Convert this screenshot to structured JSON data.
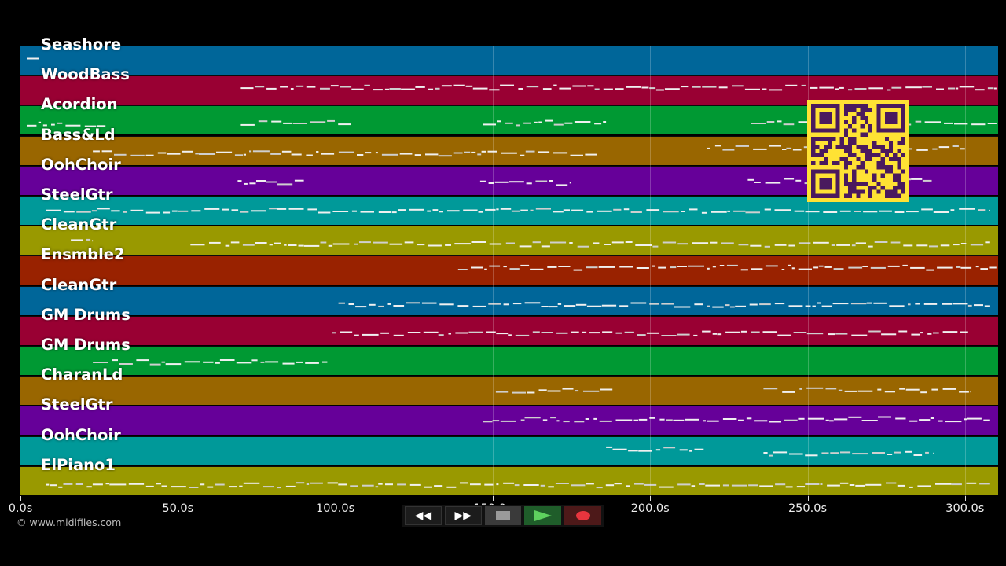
{
  "tracks": [
    {
      "name": "Seashore",
      "color": "#006699"
    },
    {
      "name": "WoodBass",
      "color": "#990033"
    },
    {
      "name": "Acordion",
      "color": "#009933"
    },
    {
      "name": "Bass&Ld",
      "color": "#996600"
    },
    {
      "name": "OohChoir",
      "color": "#660099"
    },
    {
      "name": "SteelGtr",
      "color": "#009999"
    },
    {
      "name": "CleanGtr",
      "color": "#999900"
    },
    {
      "name": "Ensmble2",
      "color": "#992200"
    },
    {
      "name": "CleanGtr",
      "color": "#006699"
    },
    {
      "name": "GM Drums",
      "color": "#990033"
    },
    {
      "name": "GM Drums",
      "color": "#009933"
    },
    {
      "name": "CharanLd",
      "color": "#996600"
    },
    {
      "name": "SteelGtr",
      "color": "#660099"
    },
    {
      "name": "OohChoir",
      "color": "#009999"
    },
    {
      "name": "ElPiano1",
      "color": "#999900"
    }
  ],
  "timeline": {
    "ticks": [
      "0.0s",
      "50.0s",
      "100.0s",
      "150.0s",
      "200.0s",
      "250.0s",
      "300.0s"
    ],
    "tick_seconds": [
      0,
      50,
      100,
      150,
      200,
      250,
      300
    ],
    "max_seconds": 310
  },
  "transport": {
    "rewind_label": "◀◀",
    "forward_label": "▶▶",
    "stop_icon": "stop-icon",
    "play_icon": "play-icon",
    "record_icon": "record-icon"
  },
  "copyright": "© www.midifiles.com",
  "qr_icon": "qr-code-icon"
}
